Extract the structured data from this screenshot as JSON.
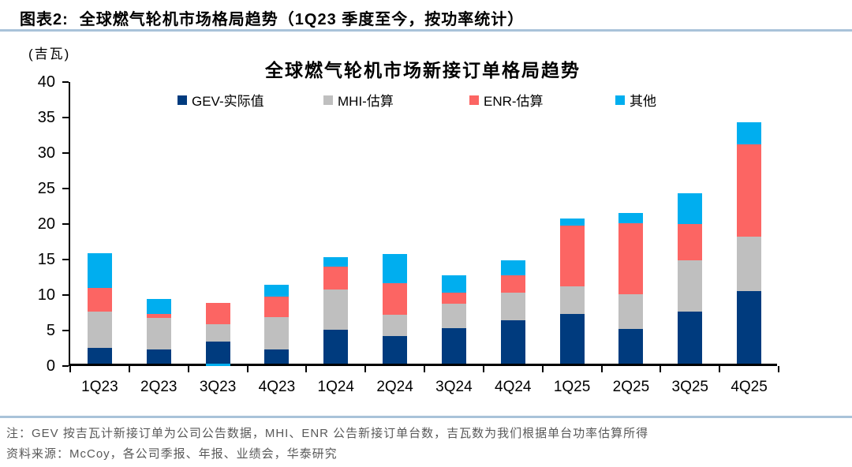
{
  "header": {
    "label": "图表2:",
    "title": "全球燃气轮机市场格局趋势（1Q23 季度至今，按功率统计）"
  },
  "chart": {
    "unit_label": "(吉瓦)",
    "title": "全球燃气轮机市场新接订单格局趋势"
  },
  "chart_data": {
    "type": "bar",
    "stacked": true,
    "title": "全球燃气轮机市场新接订单格局趋势",
    "ylabel": "吉瓦",
    "ylim": [
      0,
      40
    ],
    "ytick_step": 5,
    "grid": false,
    "legend_position": "top",
    "categories": [
      "1Q23",
      "2Q23",
      "3Q23",
      "4Q23",
      "1Q24",
      "2Q24",
      "3Q24",
      "4Q24",
      "1Q25",
      "2Q25",
      "3Q25",
      "4Q25"
    ],
    "series": [
      {
        "name": "GEV-实际值",
        "color": "#003B7E",
        "values": [
          2.2,
          2.0,
          3.1,
          2.0,
          4.8,
          3.9,
          5.0,
          6.1,
          7.0,
          4.9,
          7.3,
          10.2
        ]
      },
      {
        "name": "MHI-估算",
        "color": "#BFBFBF",
        "values": [
          5.1,
          4.5,
          2.5,
          4.6,
          5.6,
          3.0,
          3.5,
          3.9,
          3.9,
          4.9,
          7.3,
          7.7
        ]
      },
      {
        "name": "ENR-估算",
        "color": "#FC6563",
        "values": [
          3.4,
          0.5,
          3.0,
          2.8,
          3.3,
          4.4,
          1.5,
          2.5,
          8.6,
          10.0,
          5.1,
          13.0
        ]
      },
      {
        "name": "其他",
        "color": "#00AEEF",
        "values": [
          4.9,
          2.1,
          -0.3,
          1.7,
          1.3,
          4.2,
          2.4,
          2.1,
          1.0,
          1.4,
          4.3,
          3.1
        ]
      }
    ]
  },
  "notes": {
    "line1": "注：GEV 按吉瓦计新接订单为公司公告数据，MHI、ENR 公告新接订单台数，吉瓦数为我们根据单台功率估算所得",
    "line2": "资料来源：McCoy，各公司季报、年报、业绩会，华泰研究"
  },
  "colors": {
    "rule": "#A9C3D9",
    "note_text": "#595959"
  }
}
